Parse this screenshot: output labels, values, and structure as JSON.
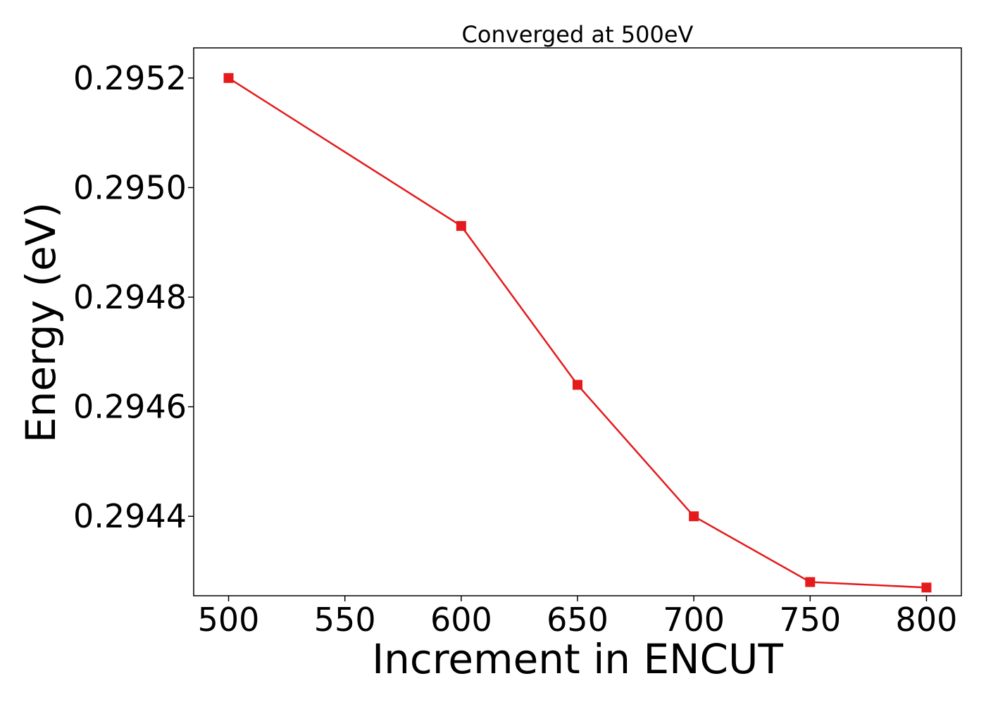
{
  "chart_data": {
    "type": "line",
    "title": "Converged at 500eV",
    "xlabel": "Increment in ENCUT",
    "ylabel": "Energy (eV)",
    "x": [
      500,
      600,
      650,
      700,
      750,
      800
    ],
    "series": [
      {
        "values": [
          0.2952,
          0.29493,
          0.29464,
          0.2944,
          0.29428,
          0.29427
        ],
        "color": "#e41a1c",
        "marker": "square"
      }
    ],
    "xlim": [
      485,
      815
    ],
    "ylim": [
      0.294255,
      0.295255
    ],
    "xticks": [
      500,
      550,
      600,
      650,
      700,
      750,
      800
    ],
    "yticks": [
      0.2944,
      0.2946,
      0.2948,
      0.295,
      0.2952
    ],
    "xtick_labels": [
      "500",
      "550",
      "600",
      "650",
      "700",
      "750",
      "800"
    ],
    "ytick_labels": [
      "0.2944",
      "0.2946",
      "0.2948",
      "0.2950",
      "0.2952"
    ],
    "grid": false,
    "legend": false
  }
}
